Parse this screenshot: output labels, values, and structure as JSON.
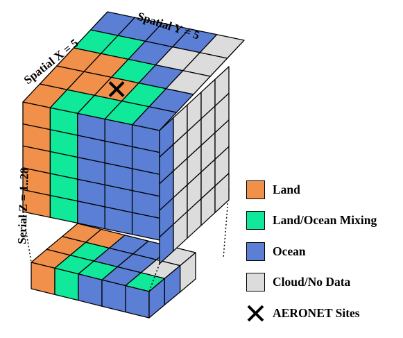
{
  "labels": {
    "spatial_x": "Spatial X = 5",
    "spatial_y": "Spatial Y = 5",
    "serial_z": "Serial Z = 1..28"
  },
  "legend": [
    {
      "label": "Land",
      "color": "#f0904a",
      "kind": "swatch"
    },
    {
      "label": "Land/Ocean Mixing",
      "color": "#10e89a",
      "kind": "swatch"
    },
    {
      "label": "Ocean",
      "color": "#5a7fd4",
      "kind": "swatch"
    },
    {
      "label": "Cloud/No Data",
      "color": "#dcdcdc",
      "kind": "swatch"
    },
    {
      "label": "AERONET Sites",
      "color": "#000000",
      "kind": "x-icon"
    }
  ],
  "grid": {
    "top_grid": [
      [
        "ocean",
        "ocean",
        "ocean",
        "ocean",
        "cloud"
      ],
      [
        "mixing",
        "mixing",
        "ocean",
        "cloud",
        "cloud"
      ],
      [
        "land",
        "land",
        "mixing",
        "ocean",
        "cloud"
      ],
      [
        "land",
        "land",
        "land",
        "mixing",
        "ocean"
      ],
      [
        "land",
        "mixing",
        "mixing",
        "mixing",
        "ocean"
      ]
    ],
    "front_face": [
      "land",
      "mixing",
      "ocean",
      "ocean",
      "ocean"
    ],
    "side_face": [
      "ocean",
      "cloud",
      "cloud",
      "cloud",
      "cloud"
    ],
    "aeronet_site": {
      "row": 3,
      "col": 2
    },
    "upper_block_layers": 5,
    "bottom_slab": {
      "top_grid": [
        [
          "land",
          "land",
          "ocean",
          "ocean",
          "cloud"
        ],
        [
          "land",
          "mixing",
          "ocean",
          "ocean",
          "cloud"
        ],
        [
          "land",
          "mixing",
          "mixing",
          "ocean",
          "mixing"
        ]
      ],
      "front_face": [
        "land",
        "mixing",
        "ocean",
        "ocean",
        "ocean"
      ],
      "side_face": [
        "ocean",
        "ocean",
        "cloud"
      ]
    }
  },
  "colors": {
    "land": "#f0904a",
    "mixing": "#10e89a",
    "ocean": "#5a7fd4",
    "cloud": "#dcdcdc",
    "edge": "#000000"
  }
}
